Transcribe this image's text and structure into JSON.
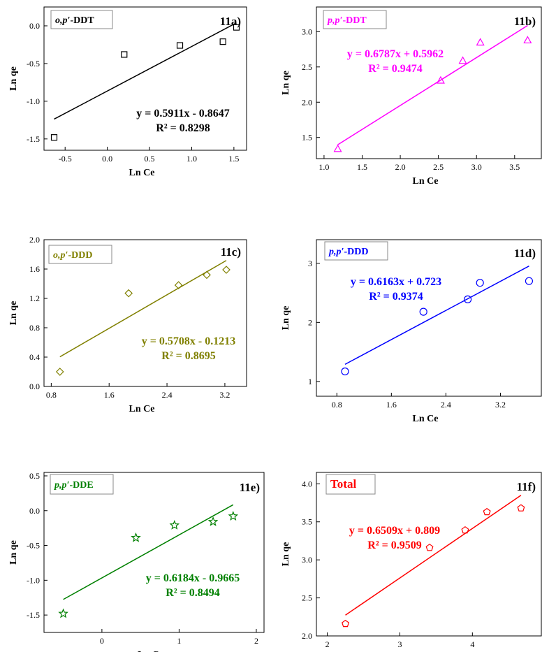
{
  "figure": {
    "panels": [
      {
        "label": "11a)",
        "legend": "o,p′-DDT",
        "legend_parts": [
          [
            "o,p′",
            true
          ],
          [
            "-DDT",
            false
          ]
        ],
        "color": "#000000",
        "marker": "square",
        "eq": "y = 0.5911x - 0.8647",
        "r2": "R² = 0.8298",
        "xlabel": "Ln Ce",
        "ylabel": "Ln qe"
      },
      {
        "label": "11b)",
        "legend": "p,p′-DDT",
        "legend_parts": [
          [
            "p,p′",
            true
          ],
          [
            "-DDT",
            false
          ]
        ],
        "color": "#ff00ff",
        "marker": "triangle",
        "eq": "y = 0.6787x + 0.5962",
        "r2": "R² = 0.9474",
        "xlabel": "Ln Ce",
        "ylabel": "Ln qe"
      },
      {
        "label": "11c)",
        "legend": "o,p′-DDD",
        "legend_parts": [
          [
            "o,p′",
            true
          ],
          [
            "-DDD",
            false
          ]
        ],
        "color": "#808000",
        "marker": "diamond",
        "eq": "y = 0.5708x - 0.1213",
        "r2": "R² = 0.8695",
        "xlabel": "Ln Ce",
        "ylabel": "Ln qe"
      },
      {
        "label": "11d)",
        "legend": "p,p′-DDD",
        "legend_parts": [
          [
            "p,p′",
            true
          ],
          [
            "-DDD",
            false
          ]
        ],
        "color": "#0000ff",
        "marker": "circle",
        "eq": "y = 0.6163x + 0.723",
        "r2": "R² = 0.9374",
        "xlabel": "Ln Ce",
        "ylabel": "Ln qe"
      },
      {
        "label": "11e)",
        "legend": "p,p′-DDE",
        "legend_parts": [
          [
            "p,p′",
            true
          ],
          [
            "-DDE",
            false
          ]
        ],
        "color": "#008000",
        "marker": "star",
        "eq": "y = 0.6184x - 0.9665",
        "r2": "R² = 0.8494",
        "xlabel": "Ln Ce",
        "ylabel": "Ln qe"
      },
      {
        "label": "11f)",
        "legend": "Total",
        "legend_parts": [
          [
            "Total",
            false
          ]
        ],
        "color": "#ff0000",
        "marker": "pentagon",
        "eq": "y = 0.6509x + 0.809",
        "r2": "R² = 0.9509",
        "xlabel": "Ln Ce",
        "ylabel": "Ln qe"
      }
    ]
  },
  "chart_data": [
    {
      "type": "scatter",
      "title": "o,p′-DDT",
      "panel": "11a)",
      "xlabel": "Ln Ce",
      "ylabel": "Ln qe",
      "x": [
        -0.63,
        0.2,
        0.86,
        1.37,
        1.53
      ],
      "y": [
        -1.48,
        -0.38,
        -0.26,
        -0.21,
        -0.02
      ],
      "fit": {
        "slope": 0.5911,
        "intercept": -0.8647,
        "x_range": [
          -0.63,
          1.53
        ]
      },
      "xlim": [
        -0.75,
        1.65
      ],
      "ylim": [
        -1.65,
        0.25
      ],
      "xticks": [
        -0.5,
        0.0,
        0.5,
        1.0,
        1.5
      ],
      "yticks": [
        -1.5,
        -1.0,
        -0.5,
        0.0
      ]
    },
    {
      "type": "scatter",
      "title": "p,p′-DDT",
      "panel": "11b)",
      "xlabel": "Ln Ce",
      "ylabel": "Ln qe",
      "x": [
        1.18,
        2.53,
        2.82,
        3.05,
        3.67
      ],
      "y": [
        1.34,
        2.31,
        2.59,
        2.85,
        2.88
      ],
      "fit": {
        "slope": 0.6787,
        "intercept": 0.5962,
        "x_range": [
          1.18,
          3.67
        ]
      },
      "xlim": [
        0.9,
        3.85
      ],
      "ylim": [
        1.2,
        3.35
      ],
      "xticks": [
        1.0,
        1.5,
        2.0,
        2.5,
        3.0,
        3.5
      ],
      "yticks": [
        1.5,
        2.0,
        2.5,
        3.0
      ]
    },
    {
      "type": "scatter",
      "title": "o,p′-DDD",
      "panel": "11c)",
      "xlabel": "Ln Ce",
      "ylabel": "Ln qe",
      "x": [
        0.92,
        1.87,
        2.56,
        2.95,
        3.22
      ],
      "y": [
        0.2,
        1.27,
        1.38,
        1.52,
        1.59
      ],
      "fit": {
        "slope": 0.5708,
        "intercept": -0.1213,
        "x_range": [
          0.92,
          3.22
        ]
      },
      "xlim": [
        0.7,
        3.5
      ],
      "ylim": [
        0.0,
        2.0
      ],
      "xticks": [
        0.8,
        1.6,
        2.4,
        3.2
      ],
      "yticks": [
        0.0,
        0.4,
        0.8,
        1.2,
        1.6,
        2.0
      ]
    },
    {
      "type": "scatter",
      "title": "p,p′-DDD",
      "panel": "11d)",
      "xlabel": "Ln Ce",
      "ylabel": "Ln qe",
      "x": [
        0.92,
        2.07,
        2.72,
        2.9,
        3.62
      ],
      "y": [
        1.17,
        2.18,
        2.39,
        2.67,
        2.7
      ],
      "fit": {
        "slope": 0.6163,
        "intercept": 0.723,
        "x_range": [
          0.92,
          3.62
        ]
      },
      "xlim": [
        0.5,
        3.8
      ],
      "ylim": [
        0.75,
        3.4
      ],
      "xticks": [
        0.8,
        1.6,
        2.4,
        3.2
      ],
      "yticks": [
        1,
        2,
        3
      ]
    },
    {
      "type": "scatter",
      "title": "p,p′-DDE",
      "panel": "11e)",
      "xlabel": "Ln Ce",
      "ylabel": "Ln qe",
      "x": [
        -0.5,
        0.44,
        0.94,
        1.44,
        1.7
      ],
      "y": [
        -1.48,
        -0.39,
        -0.21,
        -0.16,
        -0.08
      ],
      "fit": {
        "slope": 0.6184,
        "intercept": -0.9665,
        "x_range": [
          -0.5,
          1.7
        ]
      },
      "xlim": [
        -0.75,
        2.1
      ],
      "ylim": [
        -1.75,
        0.55
      ],
      "xticks": [
        0,
        1,
        2
      ],
      "yticks": [
        -1.5,
        -1.0,
        -0.5,
        0.0,
        0.5
      ]
    },
    {
      "type": "scatter",
      "title": "Total",
      "panel": "11f)",
      "xlabel": "Ln Ce",
      "ylabel": "Ln qe",
      "x": [
        2.25,
        3.41,
        3.9,
        4.2,
        4.67
      ],
      "y": [
        2.16,
        3.16,
        3.39,
        3.63,
        3.68
      ],
      "fit": {
        "slope": 0.6509,
        "intercept": 0.809,
        "x_range": [
          2.25,
          4.67
        ]
      },
      "xlim": [
        1.85,
        4.95
      ],
      "ylim": [
        2.0,
        4.15
      ],
      "xticks": [
        2,
        3,
        4
      ],
      "yticks": [
        2.0,
        2.5,
        3.0,
        3.5,
        4.0
      ]
    }
  ]
}
